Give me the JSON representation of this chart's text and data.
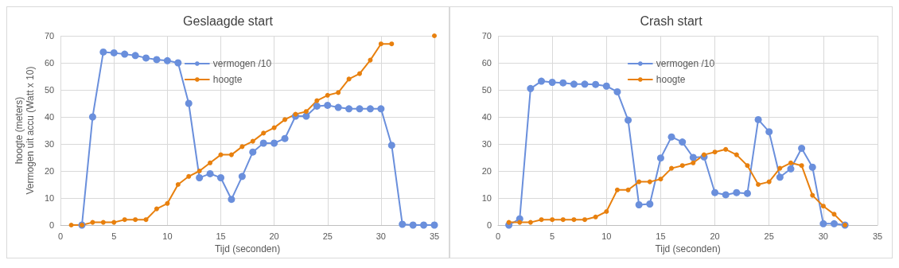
{
  "chart_data": [
    {
      "type": "line",
      "title": "Geslaagde start",
      "xlabel": "Tijd (seconden)",
      "ylabel": "hoogte (meters)\nVermogen uit accu (Watt x 10)",
      "xlim": [
        0,
        35
      ],
      "xticks": [
        0,
        5,
        10,
        15,
        20,
        25,
        30,
        35
      ],
      "ylim": [
        0,
        70
      ],
      "yticks": [
        0,
        10,
        20,
        30,
        40,
        50,
        60,
        70
      ],
      "grid": true,
      "legend": "top",
      "marker": "circle",
      "line_style": "solid",
      "x": [
        1,
        2,
        3,
        4,
        5,
        6,
        7,
        8,
        9,
        10,
        11,
        12,
        13,
        14,
        15,
        16,
        17,
        18,
        19,
        20,
        21,
        22,
        23,
        24,
        25,
        26,
        27,
        28,
        29,
        30,
        31,
        32,
        33,
        34,
        35
      ],
      "series": [
        {
          "name": "vermogen /10",
          "color": "#6a8fdc",
          "values": [
            null,
            0,
            40,
            64,
            63.7,
            63.2,
            62.7,
            61.8,
            61.2,
            60.8,
            60,
            45,
            17.5,
            19,
            17.5,
            9.5,
            18,
            27,
            30.3,
            30.3,
            32,
            40.3,
            40.3,
            44,
            44.3,
            43.5,
            43,
            43,
            43,
            43,
            29.5,
            0.3,
            0,
            0,
            0
          ]
        },
        {
          "name": "hoogte",
          "color": "#e8800e",
          "values": [
            0,
            0,
            1,
            1,
            1,
            2,
            2,
            2,
            6,
            8,
            15,
            18,
            20,
            23,
            26,
            26,
            29,
            31,
            34,
            36,
            39,
            41,
            42,
            46,
            48,
            49,
            54,
            56,
            61,
            67,
            67,
            null,
            null,
            null,
            70
          ]
        }
      ]
    },
    {
      "type": "line",
      "title": "Crash start",
      "xlabel": "Tijd (seconden)",
      "xlim": [
        0,
        35
      ],
      "xticks": [
        0,
        5,
        10,
        15,
        20,
        25,
        30,
        35
      ],
      "ylim": [
        0,
        70
      ],
      "yticks": [
        0,
        10,
        20,
        30,
        40,
        50,
        60,
        70
      ],
      "grid": true,
      "legend": "top",
      "marker": "circle",
      "line_style": "solid",
      "x": [
        1,
        2,
        3,
        4,
        5,
        6,
        7,
        8,
        9,
        10,
        11,
        12,
        13,
        14,
        15,
        16,
        17,
        18,
        19,
        20,
        21,
        22,
        23,
        24,
        25,
        26,
        27,
        28,
        29,
        30,
        31,
        32
      ],
      "series": [
        {
          "name": "vermogen /10",
          "color": "#6a8fdc",
          "values": [
            0,
            2.3,
            50.5,
            53.2,
            52.8,
            52.6,
            52.1,
            52.1,
            52,
            51.4,
            49.3,
            38.8,
            7.5,
            7.8,
            24.8,
            32.6,
            30.7,
            25,
            25.2,
            12,
            11.2,
            12,
            11.7,
            39,
            34.5,
            17.7,
            20.8,
            28.4,
            21.4,
            0.5,
            0.5,
            0
          ]
        },
        {
          "name": "hoogte",
          "color": "#e8800e",
          "values": [
            1,
            1,
            1,
            2,
            2,
            2,
            2,
            2,
            3,
            5,
            13,
            13,
            16,
            16,
            17,
            21,
            22,
            23,
            26,
            27,
            28,
            26,
            22,
            15,
            16,
            21,
            23,
            22,
            11,
            7,
            4,
            0
          ]
        }
      ]
    }
  ]
}
